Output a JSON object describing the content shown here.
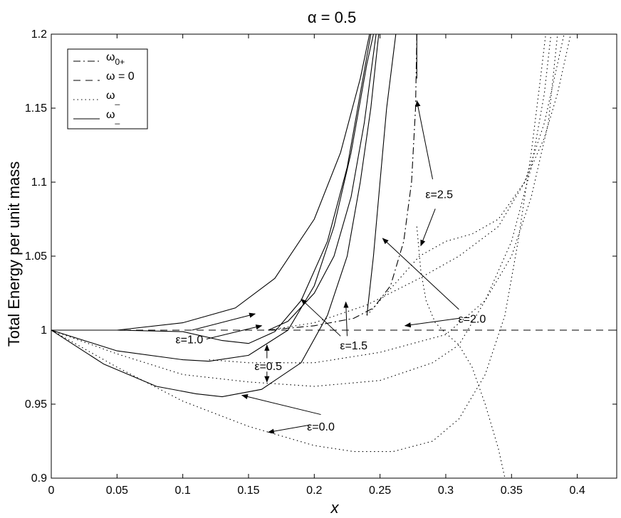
{
  "chart_data": {
    "type": "line",
    "title": "α = 0.5",
    "xlabel": "x",
    "ylabel": "Total Energy per unit mass",
    "xlim": [
      0,
      0.43
    ],
    "ylim": [
      0.9,
      1.2
    ],
    "xticks": [
      0,
      0.05,
      0.1,
      0.15,
      0.2,
      0.25,
      0.3,
      0.35,
      0.4
    ],
    "xtick_labels": [
      "0",
      "0.05",
      "0.1",
      "0.15",
      "0.2",
      "0.25",
      "0.3",
      "0.35",
      "0.4"
    ],
    "yticks": [
      0.9,
      0.95,
      1.0,
      1.05,
      1.1,
      1.15,
      1.2
    ],
    "ytick_labels": [
      "0.9",
      "0.95",
      "1",
      "1.05",
      "1.1",
      "1.15",
      "1.2"
    ],
    "grid": false,
    "legend_position": "top-left",
    "legend": [
      {
        "label": "ω0+",
        "base": "ω",
        "sub": "0+",
        "style": "dashdot"
      },
      {
        "label": "ω = 0",
        "base": "ω = 0",
        "sub": "",
        "style": "dashed"
      },
      {
        "label": "ω_",
        "base": "ω",
        "sub": "_",
        "style": "dotted"
      },
      {
        "label": "ω_",
        "base": "ω",
        "sub": "_",
        "style": "solid"
      }
    ],
    "series": [
      {
        "style": "dashed",
        "points": [
          [
            0,
            1.0
          ],
          [
            0.43,
            1.0
          ]
        ]
      },
      {
        "style": "solid",
        "points": [
          [
            0,
            1.0
          ],
          [
            0.04,
            0.977
          ],
          [
            0.08,
            0.962
          ],
          [
            0.11,
            0.957
          ],
          [
            0.13,
            0.955
          ],
          [
            0.16,
            0.96
          ],
          [
            0.19,
            0.978
          ],
          [
            0.21,
            1.01
          ],
          [
            0.225,
            1.05
          ],
          [
            0.235,
            1.1
          ],
          [
            0.243,
            1.15
          ],
          [
            0.249,
            1.2
          ]
        ]
      },
      {
        "style": "solid",
        "points": [
          [
            0,
            1.0
          ],
          [
            0.05,
            0.986
          ],
          [
            0.1,
            0.98
          ],
          [
            0.12,
            0.979
          ],
          [
            0.15,
            0.983
          ],
          [
            0.18,
            1.0
          ],
          [
            0.2,
            1.03
          ],
          [
            0.215,
            1.07
          ],
          [
            0.228,
            1.12
          ],
          [
            0.24,
            1.18
          ],
          [
            0.245,
            1.2
          ]
        ]
      },
      {
        "style": "solid",
        "points": [
          [
            0,
            1.0
          ],
          [
            0.05,
            1.0
          ],
          [
            0.1,
            0.999
          ],
          [
            0.13,
            0.993
          ],
          [
            0.15,
            0.991
          ],
          [
            0.17,
            0.999
          ],
          [
            0.19,
            1.02
          ],
          [
            0.21,
            1.06
          ],
          [
            0.225,
            1.11
          ],
          [
            0.235,
            1.16
          ],
          [
            0.243,
            1.2
          ]
        ]
      },
      {
        "style": "solid",
        "points": [
          [
            0,
            1.0
          ],
          [
            0.05,
            1.0
          ],
          [
            0.1,
            1.005
          ],
          [
            0.14,
            1.015
          ],
          [
            0.17,
            1.035
          ],
          [
            0.2,
            1.075
          ],
          [
            0.22,
            1.12
          ],
          [
            0.235,
            1.17
          ],
          [
            0.242,
            1.2
          ]
        ]
      },
      {
        "style": "solid",
        "points": [
          [
            0.165,
            1.0
          ],
          [
            0.18,
            1.006
          ],
          [
            0.2,
            1.025
          ],
          [
            0.215,
            1.05
          ],
          [
            0.228,
            1.09
          ],
          [
            0.238,
            1.14
          ],
          [
            0.247,
            1.2
          ]
        ]
      },
      {
        "style": "solid",
        "points": [
          [
            0.24,
            1.01
          ],
          [
            0.245,
            1.05
          ],
          [
            0.25,
            1.1
          ],
          [
            0.255,
            1.15
          ],
          [
            0.262,
            1.2
          ]
        ]
      },
      {
        "style": "solid",
        "points": [
          [
            0.278,
            1.2
          ],
          [
            0.278,
            1.17
          ]
        ]
      },
      {
        "style": "dashdot",
        "points": [
          [
            0.165,
            1.0
          ],
          [
            0.2,
            1.003
          ],
          [
            0.23,
            1.008
          ],
          [
            0.245,
            1.015
          ],
          [
            0.258,
            1.03
          ],
          [
            0.268,
            1.06
          ],
          [
            0.274,
            1.1
          ],
          [
            0.277,
            1.15
          ],
          [
            0.278,
            1.2
          ]
        ]
      },
      {
        "style": "dotted",
        "points": [
          [
            0,
            1.0
          ],
          [
            0.05,
            0.975
          ],
          [
            0.1,
            0.952
          ],
          [
            0.15,
            0.935
          ],
          [
            0.2,
            0.922
          ],
          [
            0.23,
            0.918
          ],
          [
            0.26,
            0.918
          ],
          [
            0.29,
            0.925
          ],
          [
            0.31,
            0.94
          ],
          [
            0.33,
            0.97
          ],
          [
            0.345,
            1.01
          ],
          [
            0.355,
            1.06
          ],
          [
            0.365,
            1.12
          ],
          [
            0.372,
            1.17
          ],
          [
            0.376,
            1.2
          ]
        ]
      },
      {
        "style": "dotted",
        "points": [
          [
            0,
            1.0
          ],
          [
            0.05,
            0.984
          ],
          [
            0.1,
            0.97
          ],
          [
            0.15,
            0.965
          ],
          [
            0.2,
            0.962
          ],
          [
            0.25,
            0.966
          ],
          [
            0.29,
            0.978
          ],
          [
            0.31,
            0.99
          ],
          [
            0.33,
            1.02
          ],
          [
            0.35,
            1.06
          ],
          [
            0.365,
            1.11
          ],
          [
            0.375,
            1.16
          ],
          [
            0.38,
            1.2
          ]
        ]
      },
      {
        "style": "dotted",
        "points": [
          [
            0.12,
            0.98
          ],
          [
            0.15,
            0.978
          ],
          [
            0.2,
            0.978
          ],
          [
            0.25,
            0.985
          ],
          [
            0.3,
            0.997
          ],
          [
            0.33,
            1.02
          ],
          [
            0.35,
            1.05
          ],
          [
            0.365,
            1.09
          ],
          [
            0.378,
            1.14
          ],
          [
            0.385,
            1.2
          ]
        ]
      },
      {
        "style": "dotted",
        "points": [
          [
            0.165,
            1.0
          ],
          [
            0.2,
            1.005
          ],
          [
            0.24,
            1.017
          ],
          [
            0.28,
            1.035
          ],
          [
            0.31,
            1.05
          ],
          [
            0.34,
            1.07
          ],
          [
            0.36,
            1.1
          ],
          [
            0.375,
            1.14
          ],
          [
            0.385,
            1.18
          ],
          [
            0.39,
            1.2
          ]
        ]
      },
      {
        "style": "dotted",
        "points": [
          [
            0.24,
            1.01
          ],
          [
            0.26,
            1.03
          ],
          [
            0.28,
            1.05
          ],
          [
            0.3,
            1.06
          ],
          [
            0.32,
            1.065
          ],
          [
            0.34,
            1.075
          ],
          [
            0.36,
            1.1
          ],
          [
            0.375,
            1.13
          ],
          [
            0.385,
            1.16
          ],
          [
            0.395,
            1.2
          ]
        ]
      },
      {
        "style": "dotted",
        "points": [
          [
            0.278,
            1.07
          ],
          [
            0.281,
            1.04
          ],
          [
            0.285,
            1.02
          ],
          [
            0.292,
            1.005
          ],
          [
            0.3,
            0.998
          ],
          [
            0.31,
            0.99
          ],
          [
            0.32,
            0.975
          ],
          [
            0.33,
            0.95
          ],
          [
            0.34,
            0.92
          ],
          [
            0.345,
            0.9
          ]
        ]
      }
    ],
    "annotations": [
      {
        "text": "ε=0.0",
        "at": [
          0.205,
          0.935
        ],
        "arrows": [
          [
            [
              0.205,
              0.943
            ],
            [
              0.145,
              0.956
            ]
          ],
          [
            [
              0.197,
              0.936
            ],
            [
              0.165,
              0.931
            ]
          ]
        ]
      },
      {
        "text": "ε=0.5",
        "at": [
          0.165,
          0.976
        ],
        "arrows": [
          [
            [
              0.164,
              0.981
            ],
            [
              0.164,
              0.99
            ]
          ],
          [
            [
              0.164,
              0.972
            ],
            [
              0.164,
              0.965
            ]
          ]
        ]
      },
      {
        "text": "ε=1.0",
        "at": [
          0.105,
          0.994
        ],
        "arrows": [
          [
            [
              0.107,
              1.0
            ],
            [
              0.155,
              1.011
            ]
          ],
          [
            [
              0.118,
              0.994
            ],
            [
              0.16,
              1.003
            ]
          ]
        ]
      },
      {
        "text": "ε=1.5",
        "at": [
          0.23,
          0.99
        ],
        "arrows": [
          [
            [
              0.225,
              0.996
            ],
            [
              0.224,
              1.019
            ]
          ],
          [
            [
              0.22,
              0.996
            ],
            [
              0.19,
              1.021
            ]
          ]
        ]
      },
      {
        "text": "ε=2.0",
        "at": [
          0.32,
          1.008
        ],
        "arrows": [
          [
            [
              0.31,
              1.014
            ],
            [
              0.252,
              1.062
            ]
          ],
          [
            [
              0.31,
              1.008
            ],
            [
              0.269,
              1.003
            ]
          ]
        ]
      },
      {
        "text": "ε=2.5",
        "at": [
          0.295,
          1.092
        ],
        "arrows": [
          [
            [
              0.29,
              1.102
            ],
            [
              0.278,
              1.155
            ]
          ],
          [
            [
              0.292,
              1.082
            ],
            [
              0.281,
              1.057
            ]
          ]
        ]
      }
    ]
  }
}
